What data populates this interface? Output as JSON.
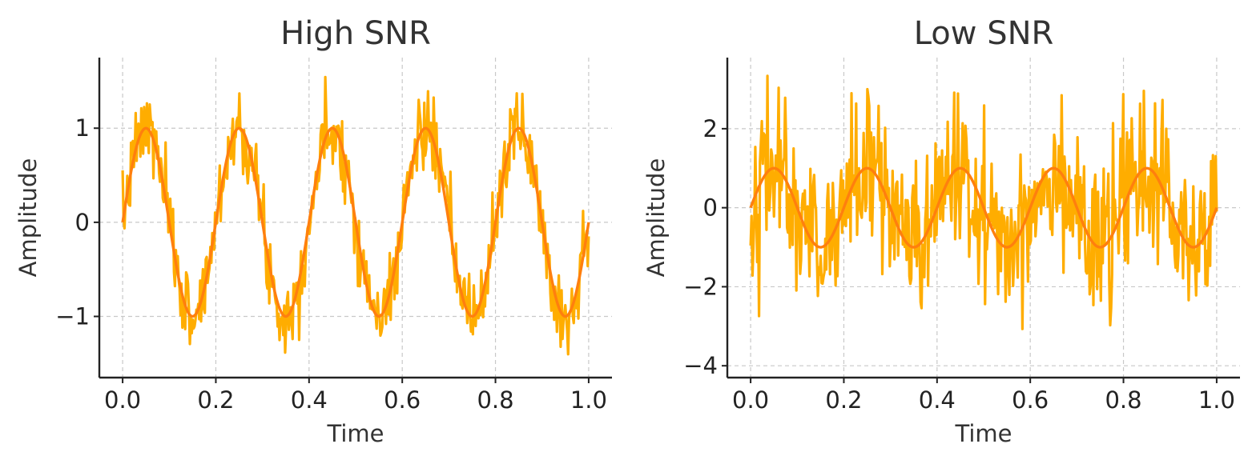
{
  "chart_data": [
    {
      "type": "line",
      "title": "High SNR",
      "xlabel": "Time",
      "ylabel": "Amplitude",
      "xlim": [
        -0.05,
        1.05
      ],
      "ylim": [
        -1.65,
        1.75
      ],
      "xticks": [
        0.0,
        0.2,
        0.4,
        0.6,
        0.8,
        1.0
      ],
      "xtick_labels": [
        "0.0",
        "0.2",
        "0.4",
        "0.6",
        "0.8",
        "1.0"
      ],
      "yticks": [
        -1,
        0,
        1
      ],
      "ytick_labels": [
        "−1",
        "0",
        "1"
      ],
      "grid": true,
      "series": [
        {
          "kind": "noisy signal",
          "color": "#ffad00",
          "function": "sin(2*pi*5*t) + gaussian noise",
          "frequency": 5,
          "noise_std": 0.2,
          "n_points": 500
        },
        {
          "kind": "clean signal",
          "color": "#ff7f0e",
          "function": "sin(2*pi*5*t)",
          "frequency": 5,
          "n_points": 500
        }
      ]
    },
    {
      "type": "line",
      "title": "Low SNR",
      "xlabel": "Time",
      "ylabel": "Amplitude",
      "xlim": [
        -0.05,
        1.05
      ],
      "ylim": [
        -4.3,
        3.8
      ],
      "xticks": [
        0.0,
        0.2,
        0.4,
        0.6,
        0.8,
        1.0
      ],
      "xtick_labels": [
        "0.0",
        "0.2",
        "0.4",
        "0.6",
        "0.8",
        "1.0"
      ],
      "yticks": [
        -4,
        -2,
        0,
        2
      ],
      "ytick_labels": [
        "−4",
        "−2",
        "0",
        "2"
      ],
      "grid": true,
      "series": [
        {
          "kind": "noisy signal",
          "color": "#ffad00",
          "function": "sin(2*pi*5*t) + gaussian noise",
          "frequency": 5,
          "noise_std": 1.0,
          "n_points": 500
        },
        {
          "kind": "clean signal",
          "color": "#ff7f0e",
          "function": "sin(2*pi*5*t)",
          "frequency": 5,
          "n_points": 500
        }
      ]
    }
  ]
}
